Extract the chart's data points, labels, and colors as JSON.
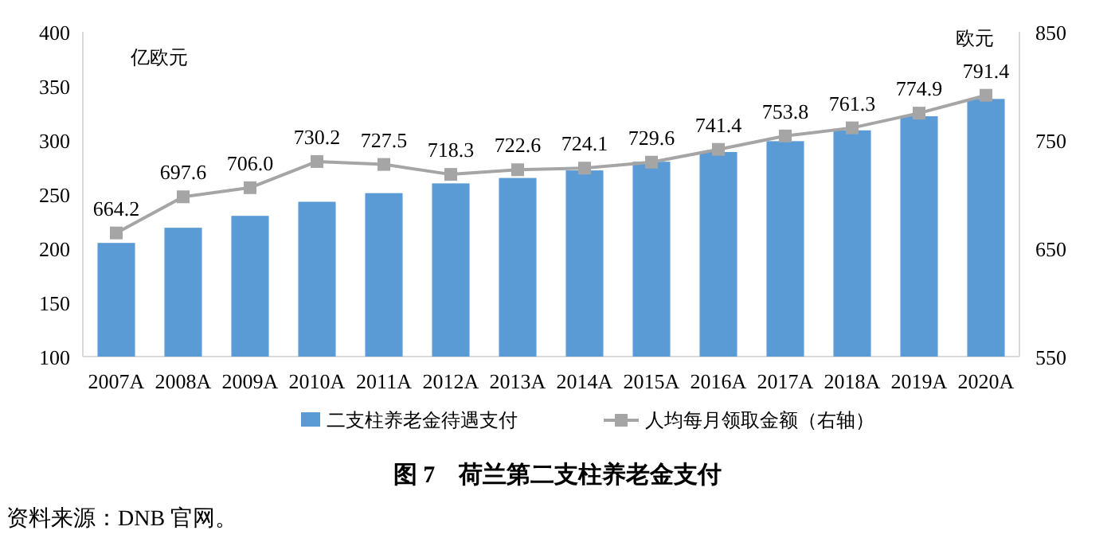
{
  "chart_data": {
    "type": "bar",
    "title": "图 7　荷兰第二支柱养老金支付",
    "ylabel": "亿欧元",
    "y2label": "欧元",
    "categories": [
      "2007A",
      "2008A",
      "2009A",
      "2010A",
      "2011A",
      "2012A",
      "2013A",
      "2014A",
      "2015A",
      "2016A",
      "2017A",
      "2018A",
      "2019A",
      "2020A"
    ],
    "series": [
      {
        "name": "二支柱养老金待遇支付",
        "color": "#5b9bd5",
        "values": [
          205,
          219,
          230,
          243,
          251,
          260,
          265,
          272,
          280,
          289,
          299,
          309,
          322,
          338
        ]
      },
      {
        "name": "人均每月领取金额（右轴）",
        "type": "line",
        "axis": "y2",
        "color": "#a5a5a5",
        "marker": "square",
        "values": [
          664.2,
          697.6,
          706.0,
          730.2,
          727.5,
          718.3,
          722.6,
          724.1,
          729.6,
          741.4,
          753.8,
          761.3,
          774.9,
          791.4
        ],
        "value_labels": [
          "664.2",
          "697.6",
          "706.0",
          "730.2",
          "727.5",
          "718.3",
          "722.6",
          "724.1",
          "729.6",
          "741.4",
          "753.8",
          "761.3",
          "774.9",
          "791.4"
        ]
      }
    ],
    "ylim": [
      100,
      400
    ],
    "yticks": [
      100,
      150,
      200,
      250,
      300,
      350,
      400
    ],
    "y2lim": [
      550,
      850
    ],
    "y2ticks": [
      550,
      650,
      750,
      850
    ],
    "grid": false,
    "legend": "bottom",
    "annotations": [
      "资料来源：DNB 官网。"
    ]
  }
}
